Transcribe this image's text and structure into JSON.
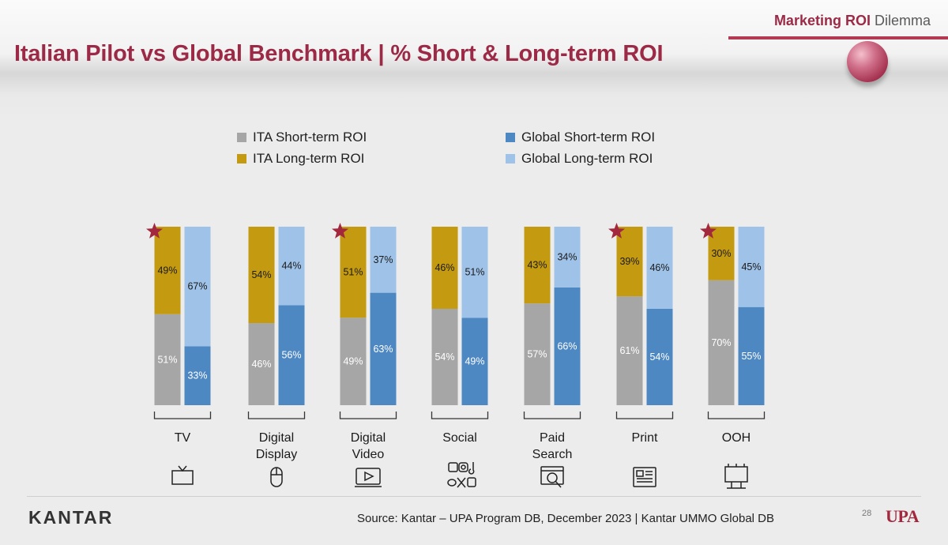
{
  "header": {
    "tagline_bold": "Marketing ROI",
    "tagline_rest": "Dilemma",
    "title": "Italian Pilot vs Global Benchmark | % Short & Long-term ROI"
  },
  "colors": {
    "ita_short": "#a6a6a6",
    "ita_long": "#c49a10",
    "global_short": "#4e88c2",
    "global_long": "#9fc2e8",
    "star": "#a3283d"
  },
  "chart_data": {
    "type": "bar",
    "stacked": true,
    "percent_stacked": true,
    "categories": [
      "TV",
      "Digital Display",
      "Digital Video",
      "Social",
      "Paid Search",
      "Print",
      "OOH"
    ],
    "category_lines": [
      [
        "TV"
      ],
      [
        "Digital",
        "Display"
      ],
      [
        "Digital",
        "Video"
      ],
      [
        "Social"
      ],
      [
        "Paid",
        "Search"
      ],
      [
        "Print"
      ],
      [
        "OOH"
      ]
    ],
    "highlighted": [
      true,
      false,
      true,
      false,
      false,
      true,
      true
    ],
    "series": [
      {
        "name": "ITA Short-term ROI",
        "group": "ITA",
        "values": [
          51,
          46,
          49,
          54,
          57,
          61,
          70
        ]
      },
      {
        "name": "ITA Long-term ROI",
        "group": "ITA",
        "values": [
          49,
          54,
          51,
          46,
          43,
          39,
          30
        ]
      },
      {
        "name": "Global Short-term ROI",
        "group": "Global",
        "values": [
          33,
          56,
          63,
          49,
          66,
          54,
          55
        ]
      },
      {
        "name": "Global Long-term ROI",
        "group": "Global",
        "values": [
          67,
          44,
          37,
          51,
          34,
          46,
          45
        ]
      }
    ],
    "ylim": [
      0,
      100
    ],
    "value_suffix": "%",
    "grid": false,
    "legend_position": "top"
  },
  "icons": [
    "tv-icon",
    "mouse-icon",
    "video-player-icon",
    "social-logos-icon",
    "search-ad-icon",
    "newspaper-icon",
    "billboard-icon"
  ],
  "footer": {
    "logo": "KANTAR",
    "source": "Source: Kantar – UPA Program DB, December 2023 | Kantar UMMO Global DB",
    "page_number": "28",
    "brand": "UPA"
  }
}
